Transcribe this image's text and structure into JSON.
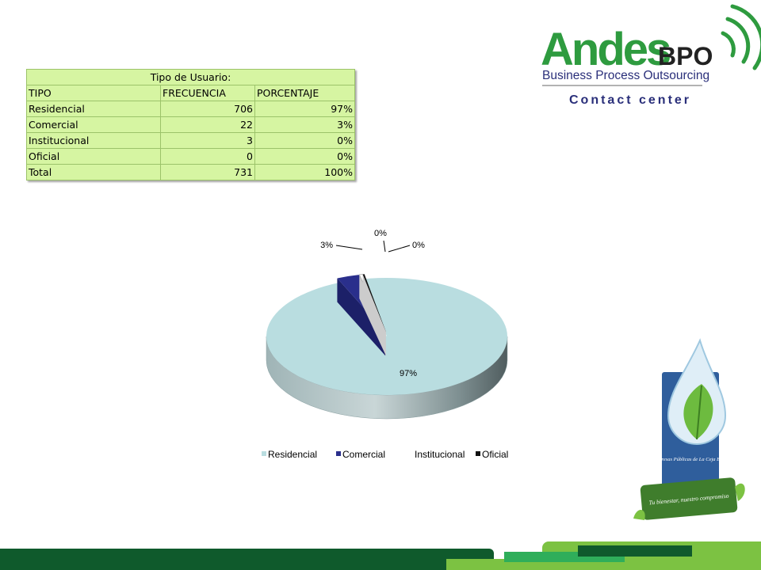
{
  "table": {
    "title": "Tipo de Usuario:",
    "headers": [
      "TIPO",
      "FRECUENCIA",
      "PORCENTAJE"
    ],
    "rows": [
      {
        "tipo": "Residencial",
        "frecuencia": "706",
        "porcentaje": "97%"
      },
      {
        "tipo": "Comercial",
        "frecuencia": "22",
        "porcentaje": "3%"
      },
      {
        "tipo": "Institucional",
        "frecuencia": "3",
        "porcentaje": "0%"
      },
      {
        "tipo": "Oficial",
        "frecuencia": "0",
        "porcentaje": "0%"
      },
      {
        "tipo": "Total",
        "frecuencia": "731",
        "porcentaje": "100%"
      }
    ]
  },
  "logo_andes": {
    "name_main": "Andes",
    "name_suffix": "BPO",
    "tagline": "Business Process Outsourcing",
    "subline": "Contact center"
  },
  "logo_epc": {
    "org": "Empresas Públicas de La Ceja E.S.P.",
    "slogan": "Tu bienestar, nuestro compromiso"
  },
  "chart_data": {
    "type": "pie",
    "style": "3d-exploded",
    "legend_position": "bottom",
    "categories": [
      "Residencial",
      "Comercial",
      "Institucional",
      "Oficial"
    ],
    "values": [
      706,
      22,
      3,
      0
    ],
    "data_labels": [
      "97%",
      "3%",
      "0%",
      "0%"
    ],
    "colors": [
      "#b9dde0",
      "#2a2f8c",
      "#ffffff",
      "#111111"
    ]
  },
  "colors": {
    "table_fill": "#d6f5a2",
    "brand_green": "#2e9b3f",
    "footer_dark": "#0f5a2c",
    "footer_light": "#7cc242"
  }
}
